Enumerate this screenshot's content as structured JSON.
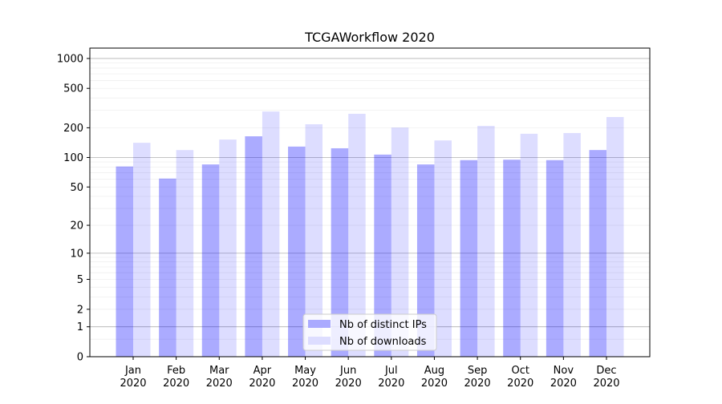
{
  "chart_data": {
    "type": "bar",
    "title": "TCGAWorkflow 2020",
    "xlabel": "",
    "ylabel": "",
    "yscale": "log(1+x)",
    "ylim": [
      0,
      1270
    ],
    "grid": true,
    "legend_position": "bottom-center",
    "yticks": [
      0,
      1,
      2,
      5,
      10,
      20,
      50,
      100,
      200,
      500,
      1000
    ],
    "ytick_labels": [
      "0",
      "1",
      "2",
      "5",
      "10",
      "20",
      "50",
      "100",
      "200",
      "500",
      "1000"
    ],
    "categories": [
      "Jan\n2020",
      "Feb\n2020",
      "Mar\n2020",
      "Apr\n2020",
      "May\n2020",
      "Jun\n2020",
      "Jul\n2020",
      "Aug\n2020",
      "Sep\n2020",
      "Oct\n2020",
      "Nov\n2020",
      "Dec\n2020"
    ],
    "series": [
      {
        "name": "Nb of distinct IPs",
        "color": "#aaaaff",
        "values": [
          81,
          61,
          85,
          164,
          129,
          124,
          107,
          85,
          94,
          95,
          94,
          119
        ]
      },
      {
        "name": "Nb of downloads",
        "color": "#ddddff",
        "values": [
          141,
          119,
          152,
          292,
          217,
          277,
          201,
          149,
          209,
          174,
          177,
          257
        ]
      }
    ]
  }
}
